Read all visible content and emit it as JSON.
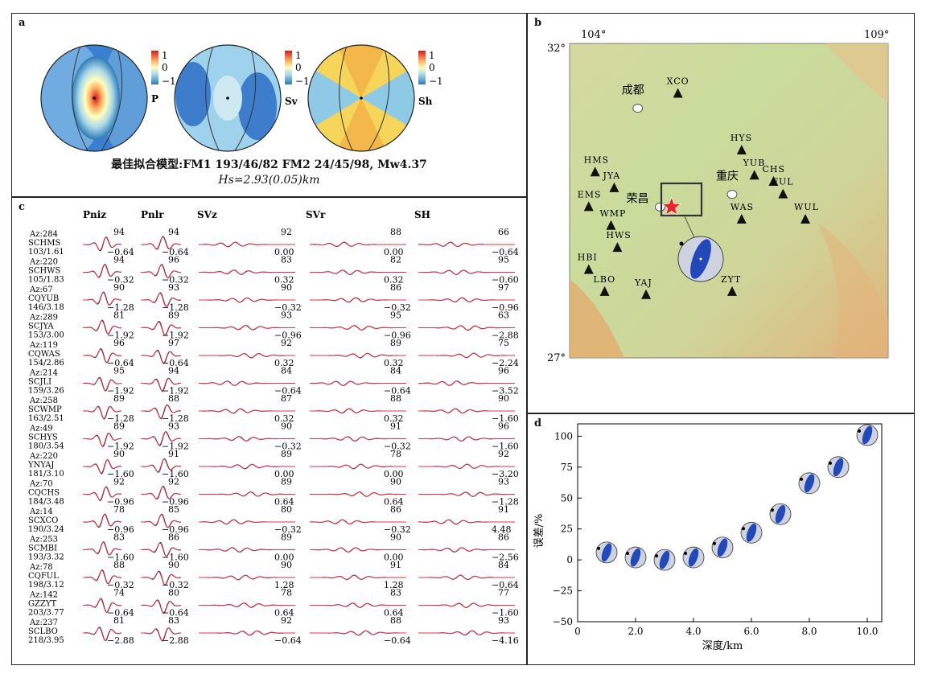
{
  "panel_a": {
    "label": "a",
    "colorbar": {
      "max": "1",
      "mid": "0",
      "min": "−1"
    },
    "spheres": [
      "P",
      "Sv",
      "Sh"
    ],
    "caption_line1": "最佳拟合模型:FM1 193/46/82 FM2 24/45/98, Mw4.37",
    "caption_line2": "Hs=2.93(0.05)km"
  },
  "panel_b": {
    "label": "b",
    "lon_left": "104°",
    "lon_right": "109°",
    "lat_top": "32°",
    "lat_bottom": "27°",
    "cities": [
      {
        "name": "成都",
        "lon": 105.07,
        "lat": 30.97
      },
      {
        "name": "重庆",
        "lon": 106.55,
        "lat": 29.6
      },
      {
        "name": "荣昌",
        "lon": 105.42,
        "lat": 29.4
      }
    ],
    "stations": [
      {
        "name": "XCO",
        "lon": 105.7,
        "lat": 31.2
      },
      {
        "name": "HYS",
        "lon": 106.7,
        "lat": 30.3
      },
      {
        "name": "YUB",
        "lon": 106.9,
        "lat": 29.9
      },
      {
        "name": "CHS",
        "lon": 107.2,
        "lat": 29.8
      },
      {
        "name": "HMS",
        "lon": 104.4,
        "lat": 29.95
      },
      {
        "name": "JYA",
        "lon": 104.7,
        "lat": 29.7
      },
      {
        "name": "EMS",
        "lon": 104.3,
        "lat": 29.4
      },
      {
        "name": "FUL",
        "lon": 107.35,
        "lat": 29.6
      },
      {
        "name": "WAS",
        "lon": 106.7,
        "lat": 29.2
      },
      {
        "name": "WUL",
        "lon": 107.7,
        "lat": 29.2
      },
      {
        "name": "WMP",
        "lon": 104.65,
        "lat": 29.1
      },
      {
        "name": "HWS",
        "lon": 104.75,
        "lat": 28.75
      },
      {
        "name": "HBI",
        "lon": 104.3,
        "lat": 28.4
      },
      {
        "name": "LBO",
        "lon": 104.55,
        "lat": 28.05
      },
      {
        "name": "YAJ",
        "lon": 105.2,
        "lat": 28.0
      },
      {
        "name": "ZYT",
        "lon": 106.55,
        "lat": 28.05
      }
    ],
    "epicenter": {
      "lon": 105.6,
      "lat": 29.4
    }
  },
  "panel_c": {
    "label": "c",
    "headers": [
      "Pniz",
      "Pnlr",
      "SVz",
      "SVr",
      "SH"
    ],
    "stations": [
      {
        "az": "Az:284",
        "name": "SCHMS",
        "dist": "103/1.61",
        "v1": "94",
        "v2": "94",
        "v3": "92",
        "v4": "88",
        "v5": "66",
        "s1": "−0.64",
        "s2": "−0.64",
        "s3": "0.00",
        "s4": "0.00",
        "s5": "−0.64"
      },
      {
        "az": "Az:220",
        "name": "SCHWS",
        "dist": "105/1.83",
        "v1": "94",
        "v2": "96",
        "v3": "83",
        "v4": "82",
        "v5": "95",
        "s1": "−0.32",
        "s2": "−0.32",
        "s3": "0.32",
        "s4": "0.32",
        "s5": "−0.60"
      },
      {
        "az": "Az:67",
        "name": "CQYUB",
        "dist": "146/3.18",
        "v1": "90",
        "v2": "93",
        "v3": "90",
        "v4": "86",
        "v5": "97",
        "s1": "−1.28",
        "s2": "−1.28",
        "s3": "−0.32",
        "s4": "−0.32",
        "s5": "−0.96"
      },
      {
        "az": "Az:289",
        "name": "SCJYA",
        "dist": "153/3.00",
        "v1": "81",
        "v2": "89",
        "v3": "93",
        "v4": "95",
        "v5": "63",
        "s1": "−1.92",
        "s2": "−1.92",
        "s3": "−0.96",
        "s4": "−0.96",
        "s5": "−2.88"
      },
      {
        "az": "Az:119",
        "name": "CQWAS",
        "dist": "154/2.86",
        "v1": "96",
        "v2": "97",
        "v3": "92",
        "v4": "89",
        "v5": "75",
        "s1": "−0.64",
        "s2": "−0.64",
        "s3": "0.32",
        "s4": "0.32",
        "s5": "−2.24"
      },
      {
        "az": "Az:214",
        "name": "SCJLI",
        "dist": "159/3.26",
        "v1": "95",
        "v2": "94",
        "v3": "84",
        "v4": "84",
        "v5": "96",
        "s1": "−1.92",
        "s2": "−1.92",
        "s3": "−0.64",
        "s4": "−0.64",
        "s5": "−3.52"
      },
      {
        "az": "Az:258",
        "name": "SCWMP",
        "dist": "163/2.51",
        "v1": "89",
        "v2": "88",
        "v3": "87",
        "v4": "88",
        "v5": "90",
        "s1": "−1.28",
        "s2": "−1.28",
        "s3": "0.32",
        "s4": "0.32",
        "s5": "−1.60"
      },
      {
        "az": "Az:49",
        "name": "SCHYS",
        "dist": "180/3.54",
        "v1": "89",
        "v2": "93",
        "v3": "90",
        "v4": "91",
        "v5": "96",
        "s1": "−1.92",
        "s2": "−1.92",
        "s3": "−0.32",
        "s4": "−0.32",
        "s5": "−1.60"
      },
      {
        "az": "Az:220",
        "name": "YNYAJ",
        "dist": "181/3.10",
        "v1": "90",
        "v2": "91",
        "v3": "89",
        "v4": "78",
        "v5": "92",
        "s1": "−1.60",
        "s2": "−1.60",
        "s3": "0.00",
        "s4": "0.00",
        "s5": "−3.20"
      },
      {
        "az": "Az:70",
        "name": "CQCHS",
        "dist": "184/3.48",
        "v1": "92",
        "v2": "92",
        "v3": "89",
        "v4": "90",
        "v5": "93",
        "s1": "−0.96",
        "s2": "−0.96",
        "s3": "0.64",
        "s4": "0.64",
        "s5": "−1.28"
      },
      {
        "az": "Az:14",
        "name": "SCXCO",
        "dist": "190/3.24",
        "v1": "78",
        "v2": "85",
        "v3": "80",
        "v4": "86",
        "v5": "91",
        "s1": "−0.96",
        "s2": "−0.96",
        "s3": "−0.32",
        "s4": "−0.32",
        "s5": "4.48"
      },
      {
        "az": "Az:253",
        "name": "SCMBI",
        "dist": "193/3.32",
        "v1": "83",
        "v2": "86",
        "v3": "89",
        "v4": "90",
        "v5": "86",
        "s1": "−1.60",
        "s2": "−1.60",
        "s3": "0.00",
        "s4": "0.00",
        "s5": "−2.56"
      },
      {
        "az": "Az:78",
        "name": "CQFUL",
        "dist": "198/3.12",
        "v1": "88",
        "v2": "90",
        "v3": "90",
        "v4": "91",
        "v5": "84",
        "s1": "−0.32",
        "s2": "−0.32",
        "s3": "1.28",
        "s4": "1.28",
        "s5": "−0.64"
      },
      {
        "az": "Az:142",
        "name": "GZZYT",
        "dist": "203/3.77",
        "v1": "74",
        "v2": "80",
        "v3": "78",
        "v4": "83",
        "v5": "77",
        "s1": "−0.64",
        "s2": "−0.64",
        "s3": "0.64",
        "s4": "0.64",
        "s5": "−1.60"
      },
      {
        "az": "Az:237",
        "name": "SCLBO",
        "dist": "218/3.95",
        "v1": "81",
        "v2": "83",
        "v3": "92",
        "v4": "88",
        "v5": "93",
        "s1": "−2.88",
        "s2": "−2.88",
        "s3": "−0.64",
        "s4": "−0.64",
        "s5": "−4.16"
      }
    ]
  },
  "panel_d": {
    "label": "d",
    "chart_data": {
      "type": "scatter",
      "xlabel": "深度/km",
      "ylabel": "误差/%",
      "xlim": [
        0,
        10.5
      ],
      "ylim": [
        -50,
        110
      ],
      "xticks": [
        0,
        2,
        4,
        6,
        8,
        10
      ],
      "xtick_labels": [
        "0",
        "2.0",
        "4.0",
        "6.0",
        "8.0",
        "10.0"
      ],
      "yticks": [
        -50,
        -25,
        0,
        25,
        50,
        75,
        100
      ],
      "ytick_labels": [
        "−50",
        "−25",
        "0",
        "25",
        "50",
        "75",
        "100"
      ],
      "x": [
        1,
        2,
        3,
        4,
        5,
        6,
        7,
        8,
        9,
        10
      ],
      "y": [
        6,
        2,
        0,
        2,
        10,
        22,
        37,
        62,
        75,
        101
      ]
    }
  }
}
